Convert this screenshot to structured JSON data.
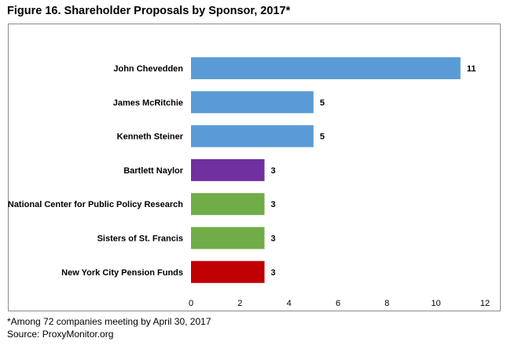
{
  "title": "Figure 16. Shareholder Proposals by Sponsor, 2017*",
  "footnote": "*Among 72 companies meeting by April 30, 2017",
  "source": "Source: ProxyMonitor.org",
  "chart_data": {
    "type": "bar",
    "orientation": "horizontal",
    "categories": [
      "John Chevedden",
      "James McRitchie",
      "Kenneth Steiner",
      "Bartlett Naylor",
      "National Center for Public Policy Research",
      "Sisters of St. Francis",
      "New York City Pension Funds"
    ],
    "values": [
      11,
      5,
      5,
      3,
      3,
      3,
      3
    ],
    "data_labels": [
      "11",
      "5",
      "5",
      "3",
      "3",
      "3",
      "3"
    ],
    "colors": [
      "#5b9bd5",
      "#5b9bd5",
      "#5b9bd5",
      "#7030a0",
      "#70ad47",
      "#70ad47",
      "#c00000"
    ],
    "xlim": [
      0,
      12
    ],
    "xticks": [
      0,
      2,
      4,
      6,
      8,
      10,
      12
    ],
    "xtick_labels": [
      "0",
      "2",
      "4",
      "6",
      "8",
      "10",
      "12"
    ],
    "grid": false,
    "legend": "none"
  }
}
